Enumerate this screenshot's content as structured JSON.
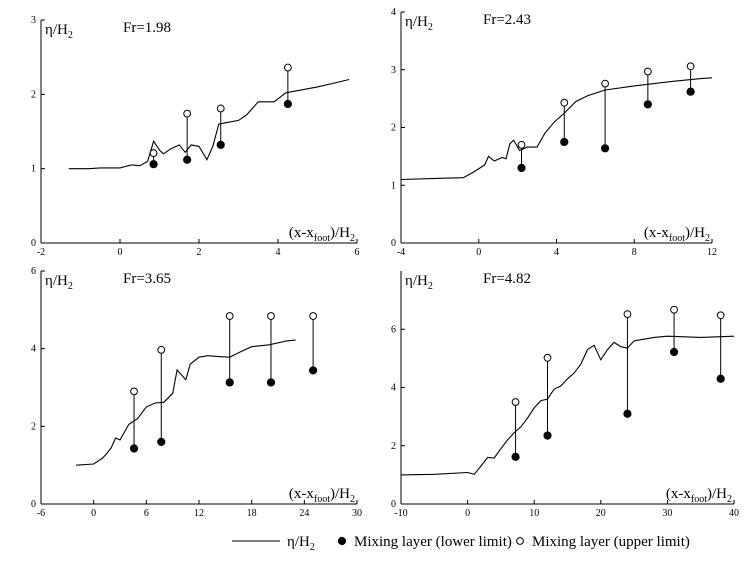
{
  "legend": {
    "line_label": "η/H₂",
    "lower_label": "Mixing layer (lower limit)",
    "upper_label": "Mixing layer (upper limit)"
  },
  "chart_data": [
    {
      "type": "line",
      "panel_label": "Fr=1.98",
      "ylabel": "η/H₂",
      "xlabel": "(x-x_foot)/H₂",
      "xlim": [
        -2,
        6
      ],
      "ylim": [
        0,
        3
      ],
      "xticks": [
        -2,
        0,
        2,
        4,
        6
      ],
      "yticks": [
        0,
        1,
        2,
        3
      ],
      "profile": [
        [
          -1.3,
          1.0
        ],
        [
          -0.8,
          1.0
        ],
        [
          -0.5,
          1.01
        ],
        [
          0,
          1.01
        ],
        [
          0.3,
          1.05
        ],
        [
          0.5,
          1.04
        ],
        [
          0.7,
          1.1
        ],
        [
          0.85,
          1.37
        ],
        [
          1.0,
          1.25
        ],
        [
          1.1,
          1.2
        ],
        [
          1.3,
          1.27
        ],
        [
          1.5,
          1.32
        ],
        [
          1.65,
          1.22
        ],
        [
          1.8,
          1.32
        ],
        [
          2.0,
          1.3
        ],
        [
          2.2,
          1.12
        ],
        [
          2.35,
          1.3
        ],
        [
          2.5,
          1.6
        ],
        [
          2.7,
          1.62
        ],
        [
          3.0,
          1.65
        ],
        [
          3.2,
          1.72
        ],
        [
          3.5,
          1.9
        ],
        [
          3.9,
          1.9
        ],
        [
          4.2,
          2.02
        ],
        [
          4.5,
          2.05
        ],
        [
          5.0,
          2.1
        ],
        [
          5.5,
          2.16
        ],
        [
          5.8,
          2.2
        ]
      ],
      "lower_limit": [
        [
          0.85,
          1.06
        ],
        [
          1.7,
          1.12
        ],
        [
          2.55,
          1.32
        ],
        [
          4.25,
          1.87
        ]
      ],
      "upper_limit": [
        [
          0.85,
          1.21
        ],
        [
          1.7,
          1.74
        ],
        [
          2.55,
          1.81
        ],
        [
          4.25,
          2.36
        ]
      ]
    },
    {
      "type": "line",
      "panel_label": "Fr=2.43",
      "ylabel": "η/H₂",
      "xlabel": "(x-x_foot)/H₂",
      "xlim": [
        -4,
        12
      ],
      "ylim": [
        0,
        4
      ],
      "xticks": [
        -4,
        0,
        4,
        8,
        12
      ],
      "yticks": [
        0,
        1,
        2,
        3,
        4
      ],
      "profile": [
        [
          -4,
          1.1
        ],
        [
          -2,
          1.12
        ],
        [
          -0.8,
          1.13
        ],
        [
          -0.3,
          1.22
        ],
        [
          0.3,
          1.35
        ],
        [
          0.5,
          1.5
        ],
        [
          0.8,
          1.42
        ],
        [
          1.2,
          1.48
        ],
        [
          1.4,
          1.46
        ],
        [
          1.6,
          1.72
        ],
        [
          1.8,
          1.78
        ],
        [
          2.1,
          1.6
        ],
        [
          2.5,
          1.66
        ],
        [
          3.0,
          1.66
        ],
        [
          3.4,
          1.9
        ],
        [
          3.9,
          2.1
        ],
        [
          4.4,
          2.25
        ],
        [
          5.0,
          2.45
        ],
        [
          5.6,
          2.55
        ],
        [
          6.5,
          2.65
        ],
        [
          8,
          2.72
        ],
        [
          10,
          2.8
        ],
        [
          11.5,
          2.85
        ],
        [
          12,
          2.86
        ]
      ],
      "lower_limit": [
        [
          2.2,
          1.3
        ],
        [
          4.4,
          1.75
        ],
        [
          6.5,
          1.64
        ],
        [
          8.7,
          2.4
        ],
        [
          10.9,
          2.62
        ]
      ],
      "upper_limit": [
        [
          2.2,
          1.7
        ],
        [
          4.4,
          2.43
        ],
        [
          6.5,
          2.76
        ],
        [
          8.7,
          2.97
        ],
        [
          10.9,
          3.06
        ]
      ]
    },
    {
      "type": "line",
      "panel_label": "Fr=3.65",
      "ylabel": "η/H₂",
      "xlabel": "(x-x_foot)/H₂",
      "xlim": [
        -6,
        30
      ],
      "ylim": [
        0,
        6
      ],
      "xticks": [
        -6,
        0,
        6,
        12,
        18,
        24,
        30
      ],
      "yticks": [
        0,
        2,
        4,
        6
      ],
      "profile": [
        [
          -2,
          1.0
        ],
        [
          0,
          1.03
        ],
        [
          1,
          1.18
        ],
        [
          1.5,
          1.3
        ],
        [
          2,
          1.45
        ],
        [
          2.5,
          1.7
        ],
        [
          3,
          1.65
        ],
        [
          4,
          2.05
        ],
        [
          5,
          2.2
        ],
        [
          6,
          2.5
        ],
        [
          7,
          2.6
        ],
        [
          8,
          2.62
        ],
        [
          9,
          2.85
        ],
        [
          9.5,
          3.45
        ],
        [
          10.5,
          3.2
        ],
        [
          11,
          3.6
        ],
        [
          12,
          3.78
        ],
        [
          13,
          3.82
        ],
        [
          14,
          3.8
        ],
        [
          15.5,
          3.78
        ],
        [
          17,
          3.95
        ],
        [
          18,
          4.05
        ],
        [
          20,
          4.1
        ],
        [
          22,
          4.2
        ],
        [
          23,
          4.22
        ]
      ],
      "lower_limit": [
        [
          4.6,
          1.43
        ],
        [
          7.7,
          1.6
        ],
        [
          15.5,
          3.13
        ],
        [
          20.2,
          3.13
        ],
        [
          25,
          3.44
        ]
      ],
      "upper_limit": [
        [
          4.6,
          2.9
        ],
        [
          7.7,
          3.97
        ],
        [
          15.5,
          4.84
        ],
        [
          20.2,
          4.84
        ],
        [
          25,
          4.84
        ]
      ]
    },
    {
      "type": "line",
      "panel_label": "Fr=4.82",
      "ylabel": "η/H₂",
      "xlabel": "(x-x_foot)/H₂",
      "xlim": [
        -10,
        40
      ],
      "ylim": [
        0,
        8
      ],
      "xticks": [
        -10,
        0,
        10,
        20,
        30,
        40
      ],
      "yticks": [
        0,
        2,
        4,
        6
      ],
      "profile": [
        [
          -10,
          1.0
        ],
        [
          -5,
          1.02
        ],
        [
          0,
          1.08
        ],
        [
          1,
          1.02
        ],
        [
          2,
          1.3
        ],
        [
          3,
          1.6
        ],
        [
          4,
          1.58
        ],
        [
          5,
          1.9
        ],
        [
          6,
          2.2
        ],
        [
          7,
          2.45
        ],
        [
          8,
          2.65
        ],
        [
          9,
          2.95
        ],
        [
          10,
          3.3
        ],
        [
          11,
          3.55
        ],
        [
          12,
          3.6
        ],
        [
          13,
          3.95
        ],
        [
          14,
          4.05
        ],
        [
          15,
          4.3
        ],
        [
          16,
          4.5
        ],
        [
          17,
          4.8
        ],
        [
          18,
          5.3
        ],
        [
          19,
          5.45
        ],
        [
          20,
          4.95
        ],
        [
          21,
          5.3
        ],
        [
          22,
          5.55
        ],
        [
          23,
          5.4
        ],
        [
          24,
          5.35
        ],
        [
          25,
          5.6
        ],
        [
          28,
          5.72
        ],
        [
          30,
          5.76
        ],
        [
          35,
          5.72
        ],
        [
          40,
          5.76
        ]
      ],
      "lower_limit": [
        [
          7.2,
          1.62
        ],
        [
          12,
          2.35
        ],
        [
          24,
          3.1
        ],
        [
          31,
          5.22
        ],
        [
          38,
          4.3
        ]
      ],
      "upper_limit": [
        [
          7.2,
          3.5
        ],
        [
          12,
          5.02
        ],
        [
          24,
          6.52
        ],
        [
          31,
          6.67
        ],
        [
          38,
          6.48
        ]
      ]
    }
  ]
}
